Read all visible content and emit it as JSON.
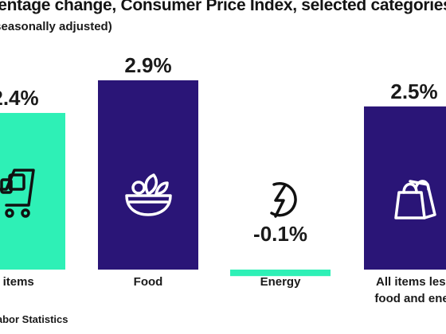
{
  "header": {
    "title": "rcentage change, Consumer Price Index, selected categories",
    "subtitle": "t seasonally adjusted)"
  },
  "footer": {
    "source": "f Labor Statistics"
  },
  "colors": {
    "teal": "#2ef0b6",
    "indigo": "#2a1577",
    "text": "#1a1a1a"
  },
  "chart_data": {
    "type": "bar",
    "categories": [
      "l items",
      "Food",
      "Energy",
      "All items less food and ener"
    ],
    "category_lines": [
      [
        "l items"
      ],
      [
        "Food"
      ],
      [
        "Energy"
      ],
      [
        "All items less",
        "food and ener"
      ]
    ],
    "values": [
      2.4,
      2.9,
      -0.1,
      2.5
    ],
    "value_labels": [
      "2.4%",
      "2.9%",
      "-0.1%",
      "2.5%"
    ],
    "bar_colors": [
      "#2ef0b6",
      "#2a1577",
      "#2ef0b6",
      "#2a1577"
    ],
    "icons": [
      "shopping-cart-icon",
      "salad-bowl-icon",
      "energy-bolt-icon",
      "shopping-bag-icon"
    ],
    "ylim": [
      0,
      2.9
    ],
    "grid": false,
    "legend": "none"
  }
}
